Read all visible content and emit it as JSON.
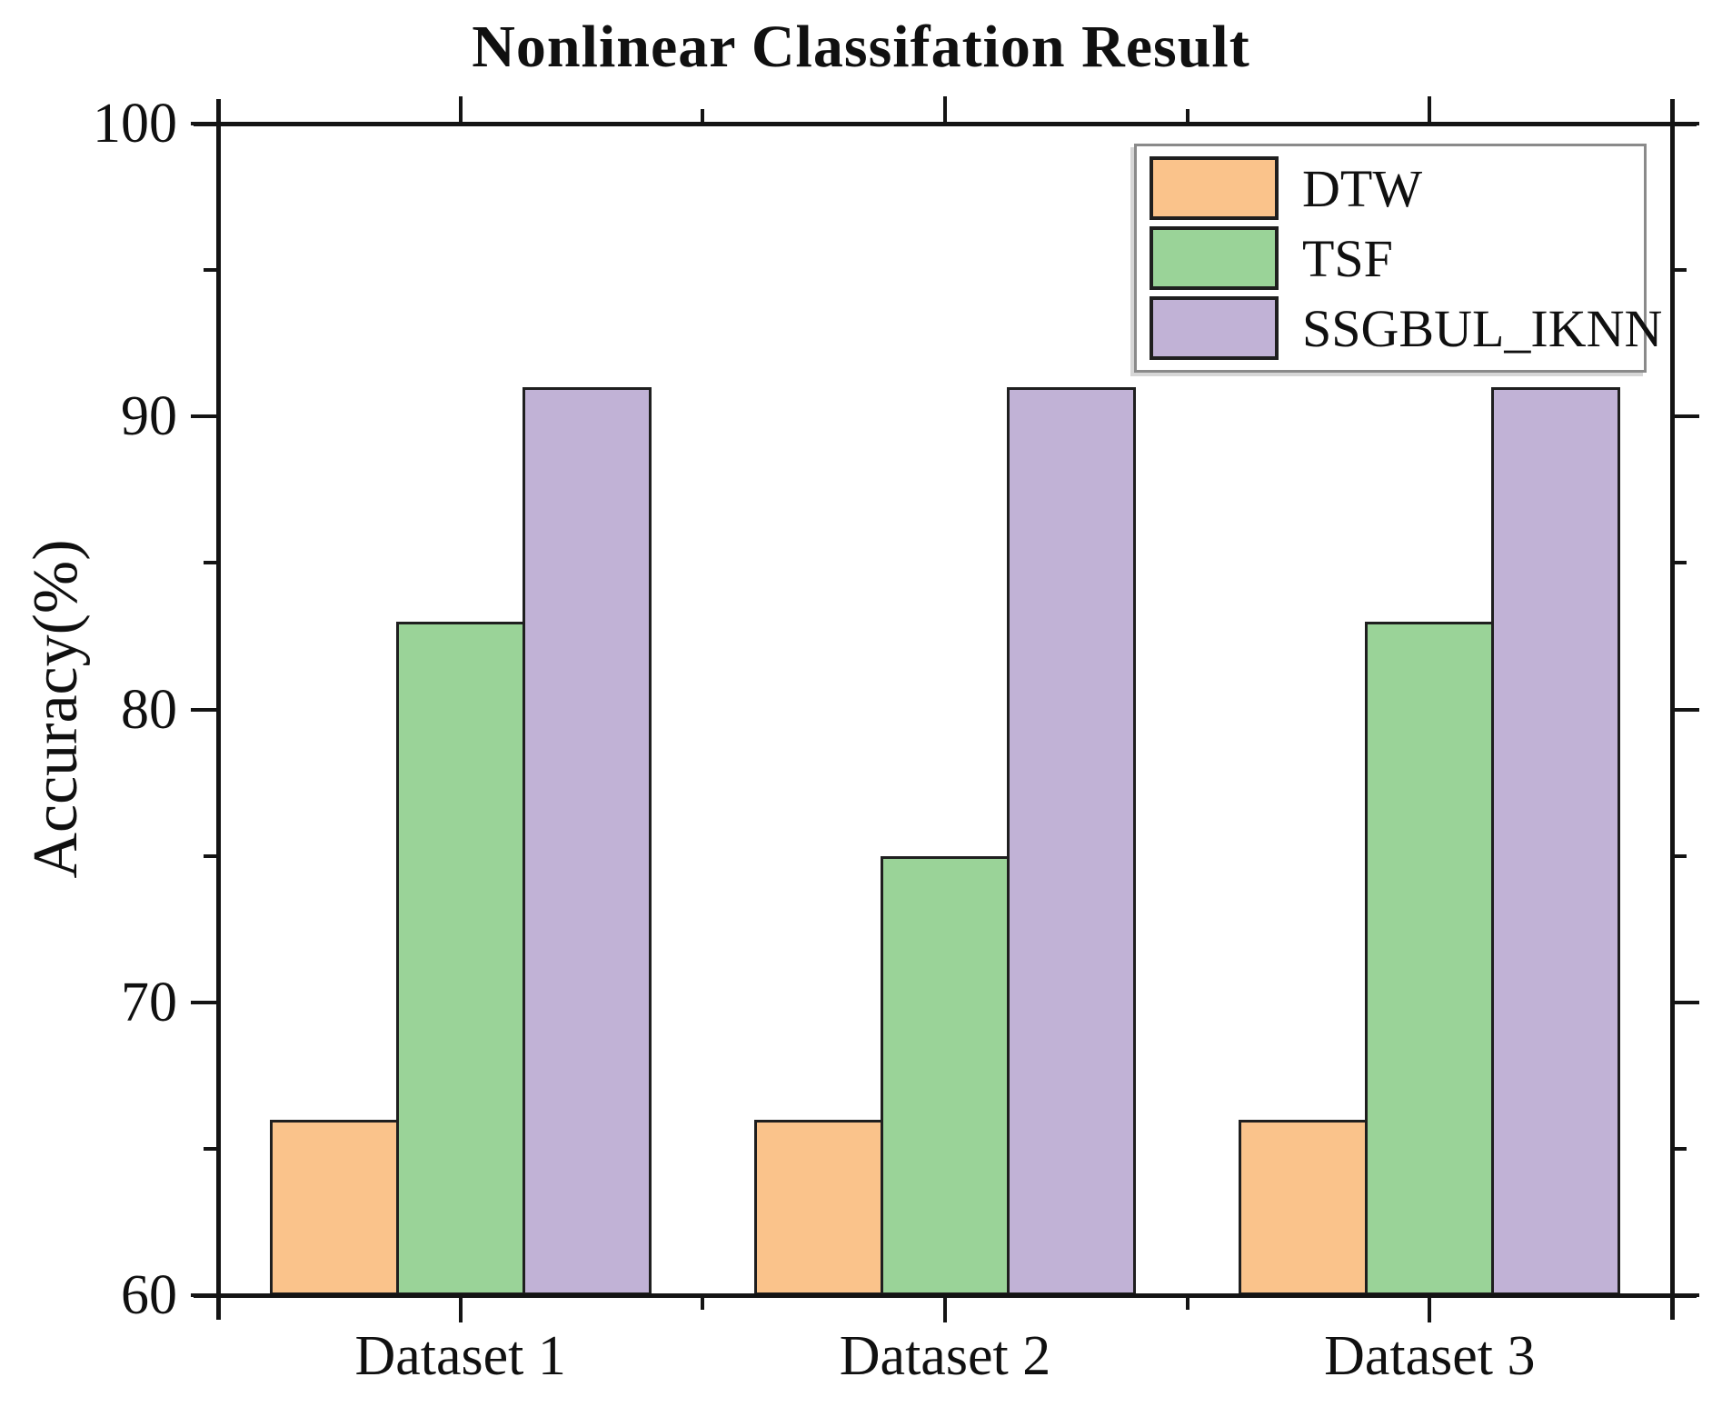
{
  "chart_data": {
    "type": "bar",
    "title": "Nonlinear Classifation Result",
    "xlabel": "",
    "ylabel": "Accuracy(%)",
    "categories": [
      "Dataset 1",
      "Dataset 2",
      "Dataset 3"
    ],
    "series": [
      {
        "name": "DTW",
        "color": "#FAC38B",
        "values": [
          66,
          66,
          66
        ]
      },
      {
        "name": "TSF",
        "color": "#9AD398",
        "values": [
          83,
          75,
          83
        ]
      },
      {
        "name": "SSGBUL_IKNN",
        "color": "#C1B2D6",
        "values": [
          91,
          91,
          91
        ]
      }
    ],
    "ylim": [
      60,
      100
    ],
    "y_major_ticks": [
      100,
      90,
      80,
      70,
      60
    ],
    "y_minor_ticks": [
      95,
      85,
      75,
      65
    ],
    "legend_position": "top-right",
    "grid": false,
    "frame_color": "#141414",
    "bar_border_color": "#1f1f1f"
  }
}
